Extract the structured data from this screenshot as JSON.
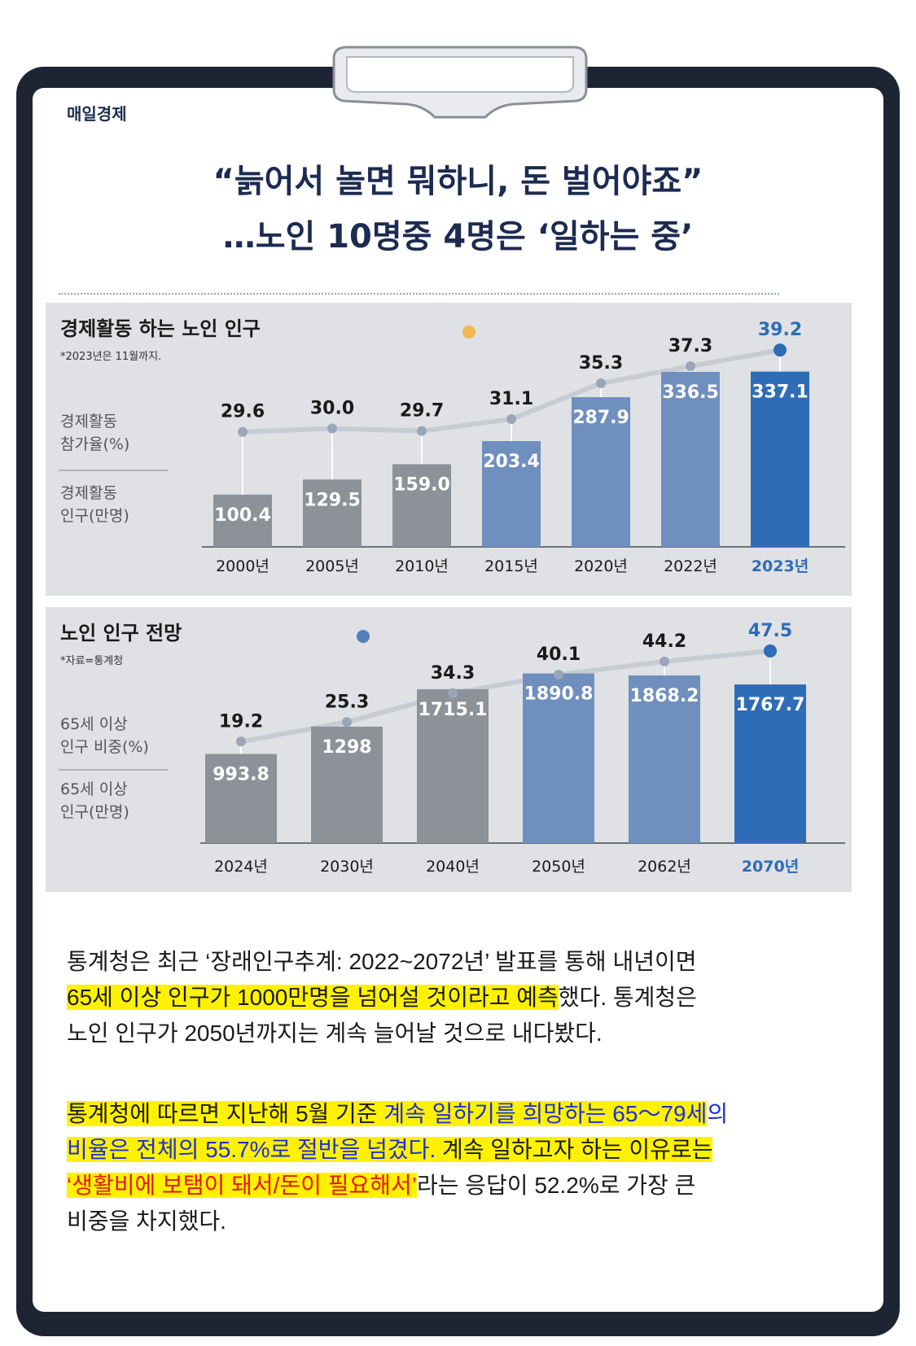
{
  "source": "매일경제",
  "headline": [
    "“늙어서 놀면 뭐하니, 돈 벌어야죠”",
    "…노인 10명중 4명은 ‘일하는 중’"
  ],
  "colors": {
    "board": "#1d2434",
    "headline": "#1c2b50",
    "bar_gray": "#8d9299",
    "bar_mid": "#6f8fbe",
    "bar_highlight": "#2e6cb6",
    "accent_blue": "#2e6cb6",
    "highlighter": "#fff200"
  },
  "chart_data": [
    {
      "type": "bar",
      "title": "경제활동 하는 노인 인구",
      "note": "*2023년은 11월까지.",
      "rate_label": "경제활동\n참가율(%)",
      "bar_label": "경제활동\n인구(만명)",
      "categories": [
        "2000년",
        "2005년",
        "2010년",
        "2015년",
        "2020년",
        "2022년",
        "2023년"
      ],
      "series": [
        {
          "name": "경제활동 참가율(%)",
          "values": [
            29.6,
            30.0,
            29.7,
            31.1,
            35.3,
            37.3,
            39.2
          ]
        },
        {
          "name": "경제활동 인구(만명)",
          "values": [
            100.4,
            129.5,
            159.0,
            203.4,
            287.9,
            336.5,
            337.1
          ]
        }
      ],
      "labels_rate": [
        "29.6",
        "30.0",
        "29.7",
        "31.1",
        "35.3",
        "37.3",
        "39.2"
      ],
      "labels_bar": [
        "100.4",
        "129.5",
        "159.0",
        "203.4",
        "287.9",
        "336.5",
        "337.1"
      ],
      "highlight_index": 6
    },
    {
      "type": "bar",
      "title": "노인 인구 전망",
      "note": "*자료=통계청",
      "rate_label": "65세 이상\n인구 비중(%)",
      "bar_label": "65세 이상\n인구(만명)",
      "categories": [
        "2024년",
        "2030년",
        "2040년",
        "2050년",
        "2062년",
        "2070년"
      ],
      "series": [
        {
          "name": "65세 이상 인구 비중(%)",
          "values": [
            19.2,
            25.3,
            34.3,
            40.1,
            44.2,
            47.5
          ]
        },
        {
          "name": "65세 이상 인구(만명)",
          "values": [
            993.8,
            1298,
            1715.1,
            1890.8,
            1868.2,
            1767.7
          ]
        }
      ],
      "labels_rate": [
        "19.2",
        "25.3",
        "34.3",
        "40.1",
        "44.2",
        "47.5"
      ],
      "labels_bar": [
        "993.8",
        "1298",
        "1715.1",
        "1890.8",
        "1868.2",
        "1767.7"
      ],
      "highlight_index": 5
    }
  ],
  "paragraph1": [
    [
      {
        "t": "통계청은 최근 ‘장래인구추계: 2022~2072년’ 발표를 통해 내년이면",
        "s": ""
      }
    ],
    [
      {
        "t": "65세 이상 인구가 1000만명을 넘어설 것이라고 예측",
        "s": "hy"
      },
      {
        "t": "했다. 통계청은",
        "s": ""
      }
    ],
    [
      {
        "t": "노인 인구가 2050년까지는 계속 늘어날 것으로 내다봤다.",
        "s": ""
      }
    ]
  ],
  "paragraph2": [
    [
      {
        "t": "통계청에 따르면 지난해 5월 기준 ",
        "s": "hy"
      },
      {
        "t": "계속 일하기를 희망하는 65～79세",
        "s": "hy blue"
      },
      {
        "t": "의",
        "s": "blue"
      }
    ],
    [
      {
        "t": "비율은 전체의 55.7%로 절반을 넘겼다.",
        "s": "hy blue"
      },
      {
        "t": " 계속 일하고자 하는 이유로는",
        "s": "hy"
      }
    ],
    [
      {
        "t": "‘생활비에 보탬이 돼서/돈이 필요해서’",
        "s": "hy red"
      },
      {
        "t": "라는 응답이 52.2%로 가장 큰",
        "s": ""
      }
    ],
    [
      {
        "t": "비중을 차지했다.",
        "s": ""
      }
    ]
  ]
}
